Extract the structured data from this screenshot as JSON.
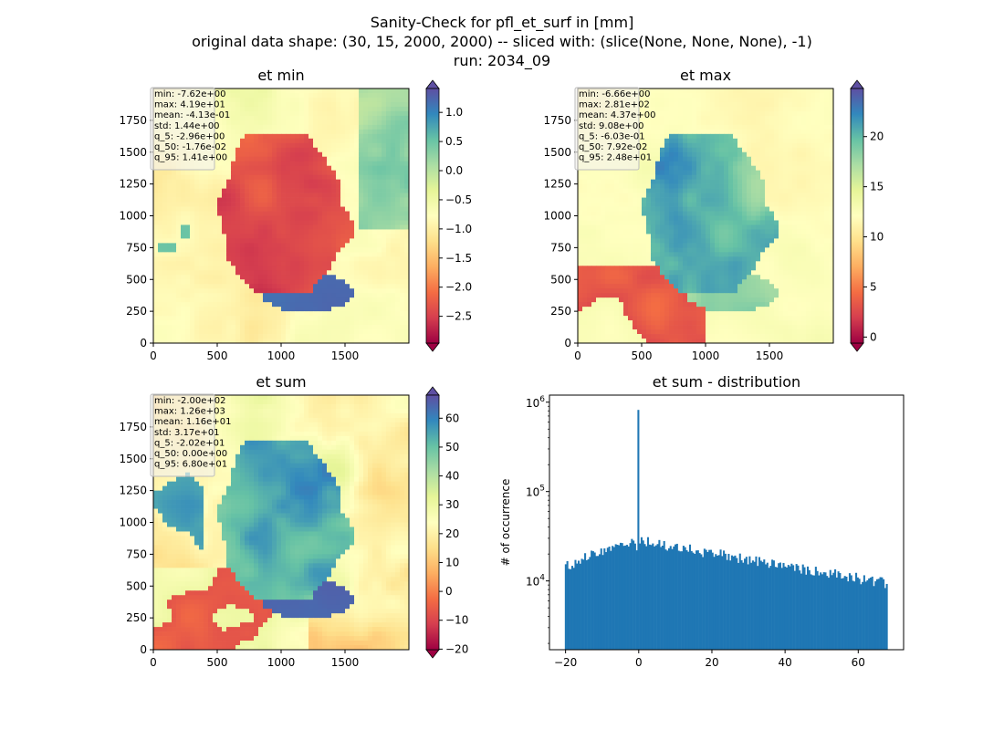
{
  "suptitle": [
    "Sanity-Check for pfl_et_surf in [mm]",
    "original data shape: (30, 15, 2000, 2000) -- sliced with: (slice(None, None, None), -1)",
    "run: 2034_09"
  ],
  "colors": {
    "histogram": "#1f77b4",
    "colormap": [
      "#9e0142",
      "#d53e4f",
      "#f46d43",
      "#fdae61",
      "#fee08b",
      "#ffffbf",
      "#e6f598",
      "#abdda4",
      "#66c2a5",
      "#3288bd",
      "#5e4fa2"
    ]
  },
  "chart_data": [
    {
      "type": "heatmap",
      "title": "et min",
      "colormap": "Spectral",
      "x_ticks": [
        0,
        500,
        1000,
        1500
      ],
      "y_ticks": [
        0,
        250,
        500,
        750,
        1000,
        1250,
        1500,
        1750
      ],
      "xlim": [
        0,
        2000
      ],
      "ylim": [
        0,
        2000
      ],
      "colorbar": {
        "vmin": -2.96,
        "vmax": 1.41,
        "ticks": [
          -2.5,
          -2.0,
          -1.5,
          -1.0,
          -0.5,
          0.0,
          0.5,
          1.0
        ],
        "tick_labels": [
          "−2.5",
          "−2.0",
          "−1.5",
          "−1.0",
          "−0.5",
          "0.0",
          "0.5",
          "1.0"
        ],
        "extend": "both"
      },
      "stats": [
        "min: -7.62e+00",
        "max: 4.19e+01",
        "mean: -4.13e-01",
        "std: 1.44e+00",
        "q_5: -2.96e+00",
        "q_50: -1.76e-02",
        "q_95: 1.41e+00"
      ]
    },
    {
      "type": "heatmap",
      "title": "et max",
      "colormap": "Spectral",
      "x_ticks": [
        0,
        500,
        1000,
        1500
      ],
      "y_ticks": [
        0,
        250,
        500,
        750,
        1000,
        1250,
        1500,
        1750
      ],
      "xlim": [
        0,
        2000
      ],
      "ylim": [
        0,
        2000
      ],
      "colorbar": {
        "vmin": -0.603,
        "vmax": 24.8,
        "ticks": [
          0,
          5,
          10,
          15,
          20
        ],
        "tick_labels": [
          "0",
          "5",
          "10",
          "15",
          "20"
        ],
        "extend": "both"
      },
      "stats": [
        "min: -6.66e+00",
        "max: 2.81e+02",
        "mean: 4.37e+00",
        "std: 9.08e+00",
        "q_5: -6.03e-01",
        "q_50: 7.92e-02",
        "q_95: 2.48e+01"
      ]
    },
    {
      "type": "heatmap",
      "title": "et sum",
      "colormap": "Spectral",
      "x_ticks": [
        0,
        500,
        1000,
        1500
      ],
      "y_ticks": [
        0,
        250,
        500,
        750,
        1000,
        1250,
        1500,
        1750
      ],
      "xlim": [
        0,
        2000
      ],
      "ylim": [
        0,
        2000
      ],
      "colorbar": {
        "vmin": -20.2,
        "vmax": 68.0,
        "ticks": [
          -20,
          -10,
          0,
          10,
          20,
          30,
          40,
          50,
          60
        ],
        "tick_labels": [
          "−20",
          "−10",
          "0",
          "10",
          "20",
          "30",
          "40",
          "50",
          "60"
        ],
        "extend": "both"
      },
      "stats": [
        "min: -2.00e+02",
        "max: 1.26e+03",
        "mean: 1.16e+01",
        "std: 3.17e+01",
        "q_5: -2.02e+01",
        "q_50: 0.00e+00",
        "q_95: 6.80e+01"
      ]
    },
    {
      "type": "bar",
      "title": "et sum - distribution",
      "ylabel": "# of occurrence",
      "yscale": "log",
      "ylim": [
        1700,
        1200000
      ],
      "xlim": [
        -24.4,
        72.4
      ],
      "x_ticks": [
        -20,
        0,
        20,
        40,
        60
      ],
      "x_tick_labels": [
        "−20",
        "0",
        "20",
        "40",
        "60"
      ],
      "y_ticks": [
        10000,
        100000,
        1000000
      ],
      "bin_range": [
        -20.2,
        68.0
      ],
      "bins": 200,
      "spike": {
        "x": 0.0,
        "count": 820000
      }
    }
  ]
}
